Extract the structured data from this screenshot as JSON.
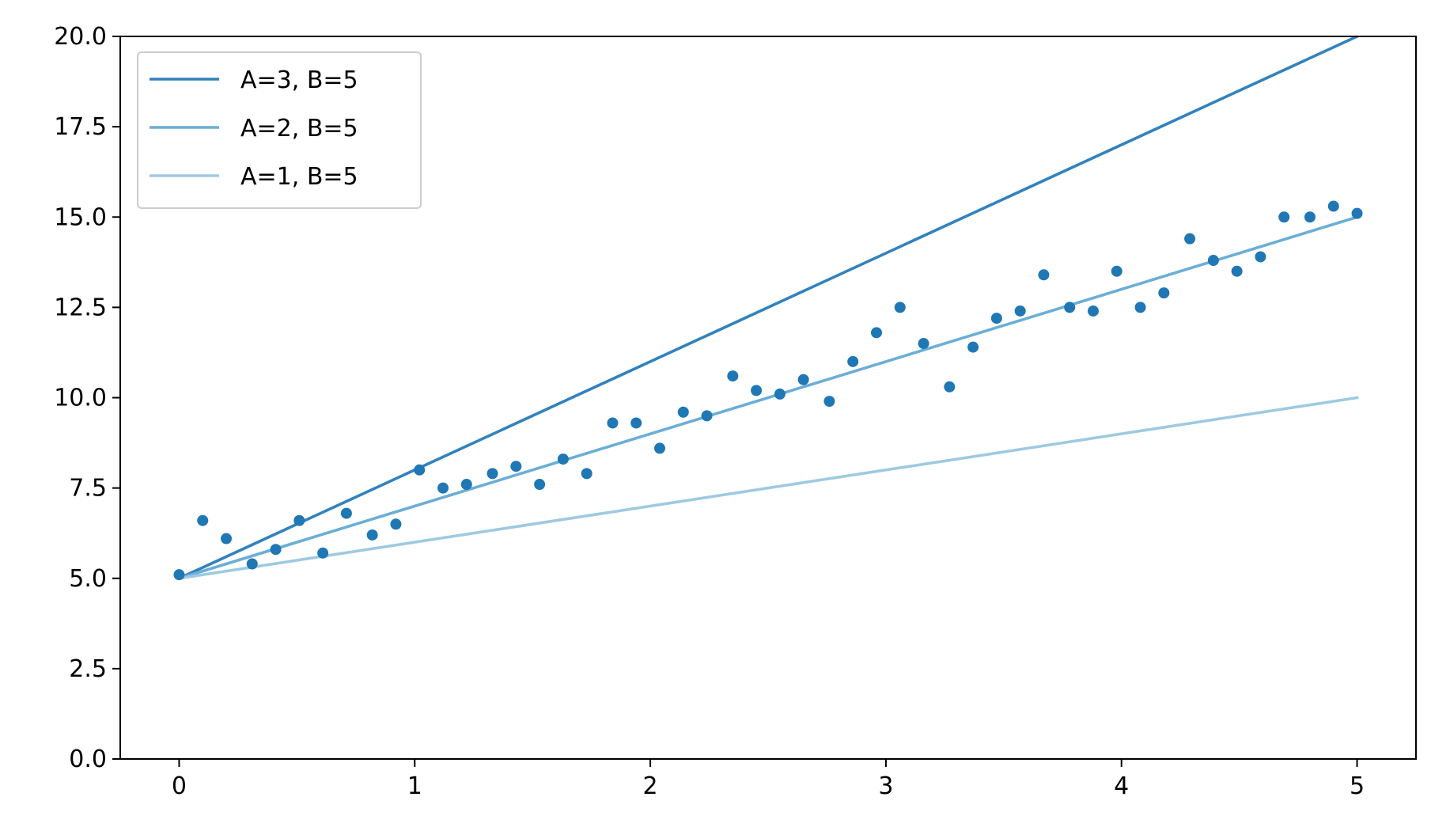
{
  "chart_data": {
    "type": "line",
    "title": "",
    "xlabel": "",
    "ylabel": "",
    "xlim": [
      -0.25,
      5.25
    ],
    "ylim": [
      0,
      20
    ],
    "xticks": [
      0,
      1,
      2,
      3,
      4,
      5
    ],
    "xtick_labels": [
      "0",
      "1",
      "2",
      "3",
      "4",
      "5"
    ],
    "yticks": [
      0,
      2.5,
      5,
      7.5,
      10,
      12.5,
      15,
      17.5,
      20
    ],
    "ytick_labels": [
      "0.0",
      "2.5",
      "5.0",
      "7.5",
      "10.0",
      "12.5",
      "15.0",
      "17.5",
      "20.0"
    ],
    "grid": false,
    "legend_position": "top-left",
    "series": [
      {
        "name": "A=3, B=5",
        "type": "line",
        "color": "#3182bd",
        "x": [
          0,
          5
        ],
        "y": [
          5,
          20
        ]
      },
      {
        "name": "A=2, B=5",
        "type": "line",
        "color": "#6baed6",
        "x": [
          0,
          5
        ],
        "y": [
          5,
          15
        ]
      },
      {
        "name": "A=1, B=5",
        "type": "line",
        "color": "#9ecae1",
        "x": [
          0,
          5
        ],
        "y": [
          5,
          10
        ]
      },
      {
        "type": "scatter",
        "color": "#1f77b4",
        "x": [
          0.0,
          0.1,
          0.2,
          0.31,
          0.41,
          0.51,
          0.61,
          0.71,
          0.82,
          0.92,
          1.02,
          1.12,
          1.22,
          1.33,
          1.43,
          1.53,
          1.63,
          1.73,
          1.84,
          1.94,
          2.04,
          2.14,
          2.24,
          2.35,
          2.45,
          2.55,
          2.65,
          2.76,
          2.86,
          2.96,
          3.06,
          3.16,
          3.27,
          3.37,
          3.47,
          3.57,
          3.67,
          3.78,
          3.88,
          3.98,
          4.08,
          4.18,
          4.29,
          4.39,
          4.49,
          4.59,
          4.69,
          4.8,
          4.9,
          5.0
        ],
        "y": [
          5.1,
          6.6,
          6.1,
          5.4,
          5.8,
          6.6,
          5.7,
          6.8,
          6.2,
          6.5,
          8.0,
          7.5,
          7.6,
          7.9,
          8.1,
          7.6,
          8.3,
          7.9,
          9.3,
          9.3,
          8.6,
          9.6,
          9.5,
          10.6,
          10.2,
          10.1,
          10.5,
          9.9,
          11.0,
          11.8,
          12.5,
          11.5,
          10.3,
          11.4,
          12.2,
          12.4,
          13.4,
          12.5,
          12.4,
          13.5,
          12.5,
          12.9,
          14.4,
          13.8,
          13.5,
          13.9,
          15.0,
          15.0,
          15.3,
          15.1
        ]
      }
    ]
  }
}
